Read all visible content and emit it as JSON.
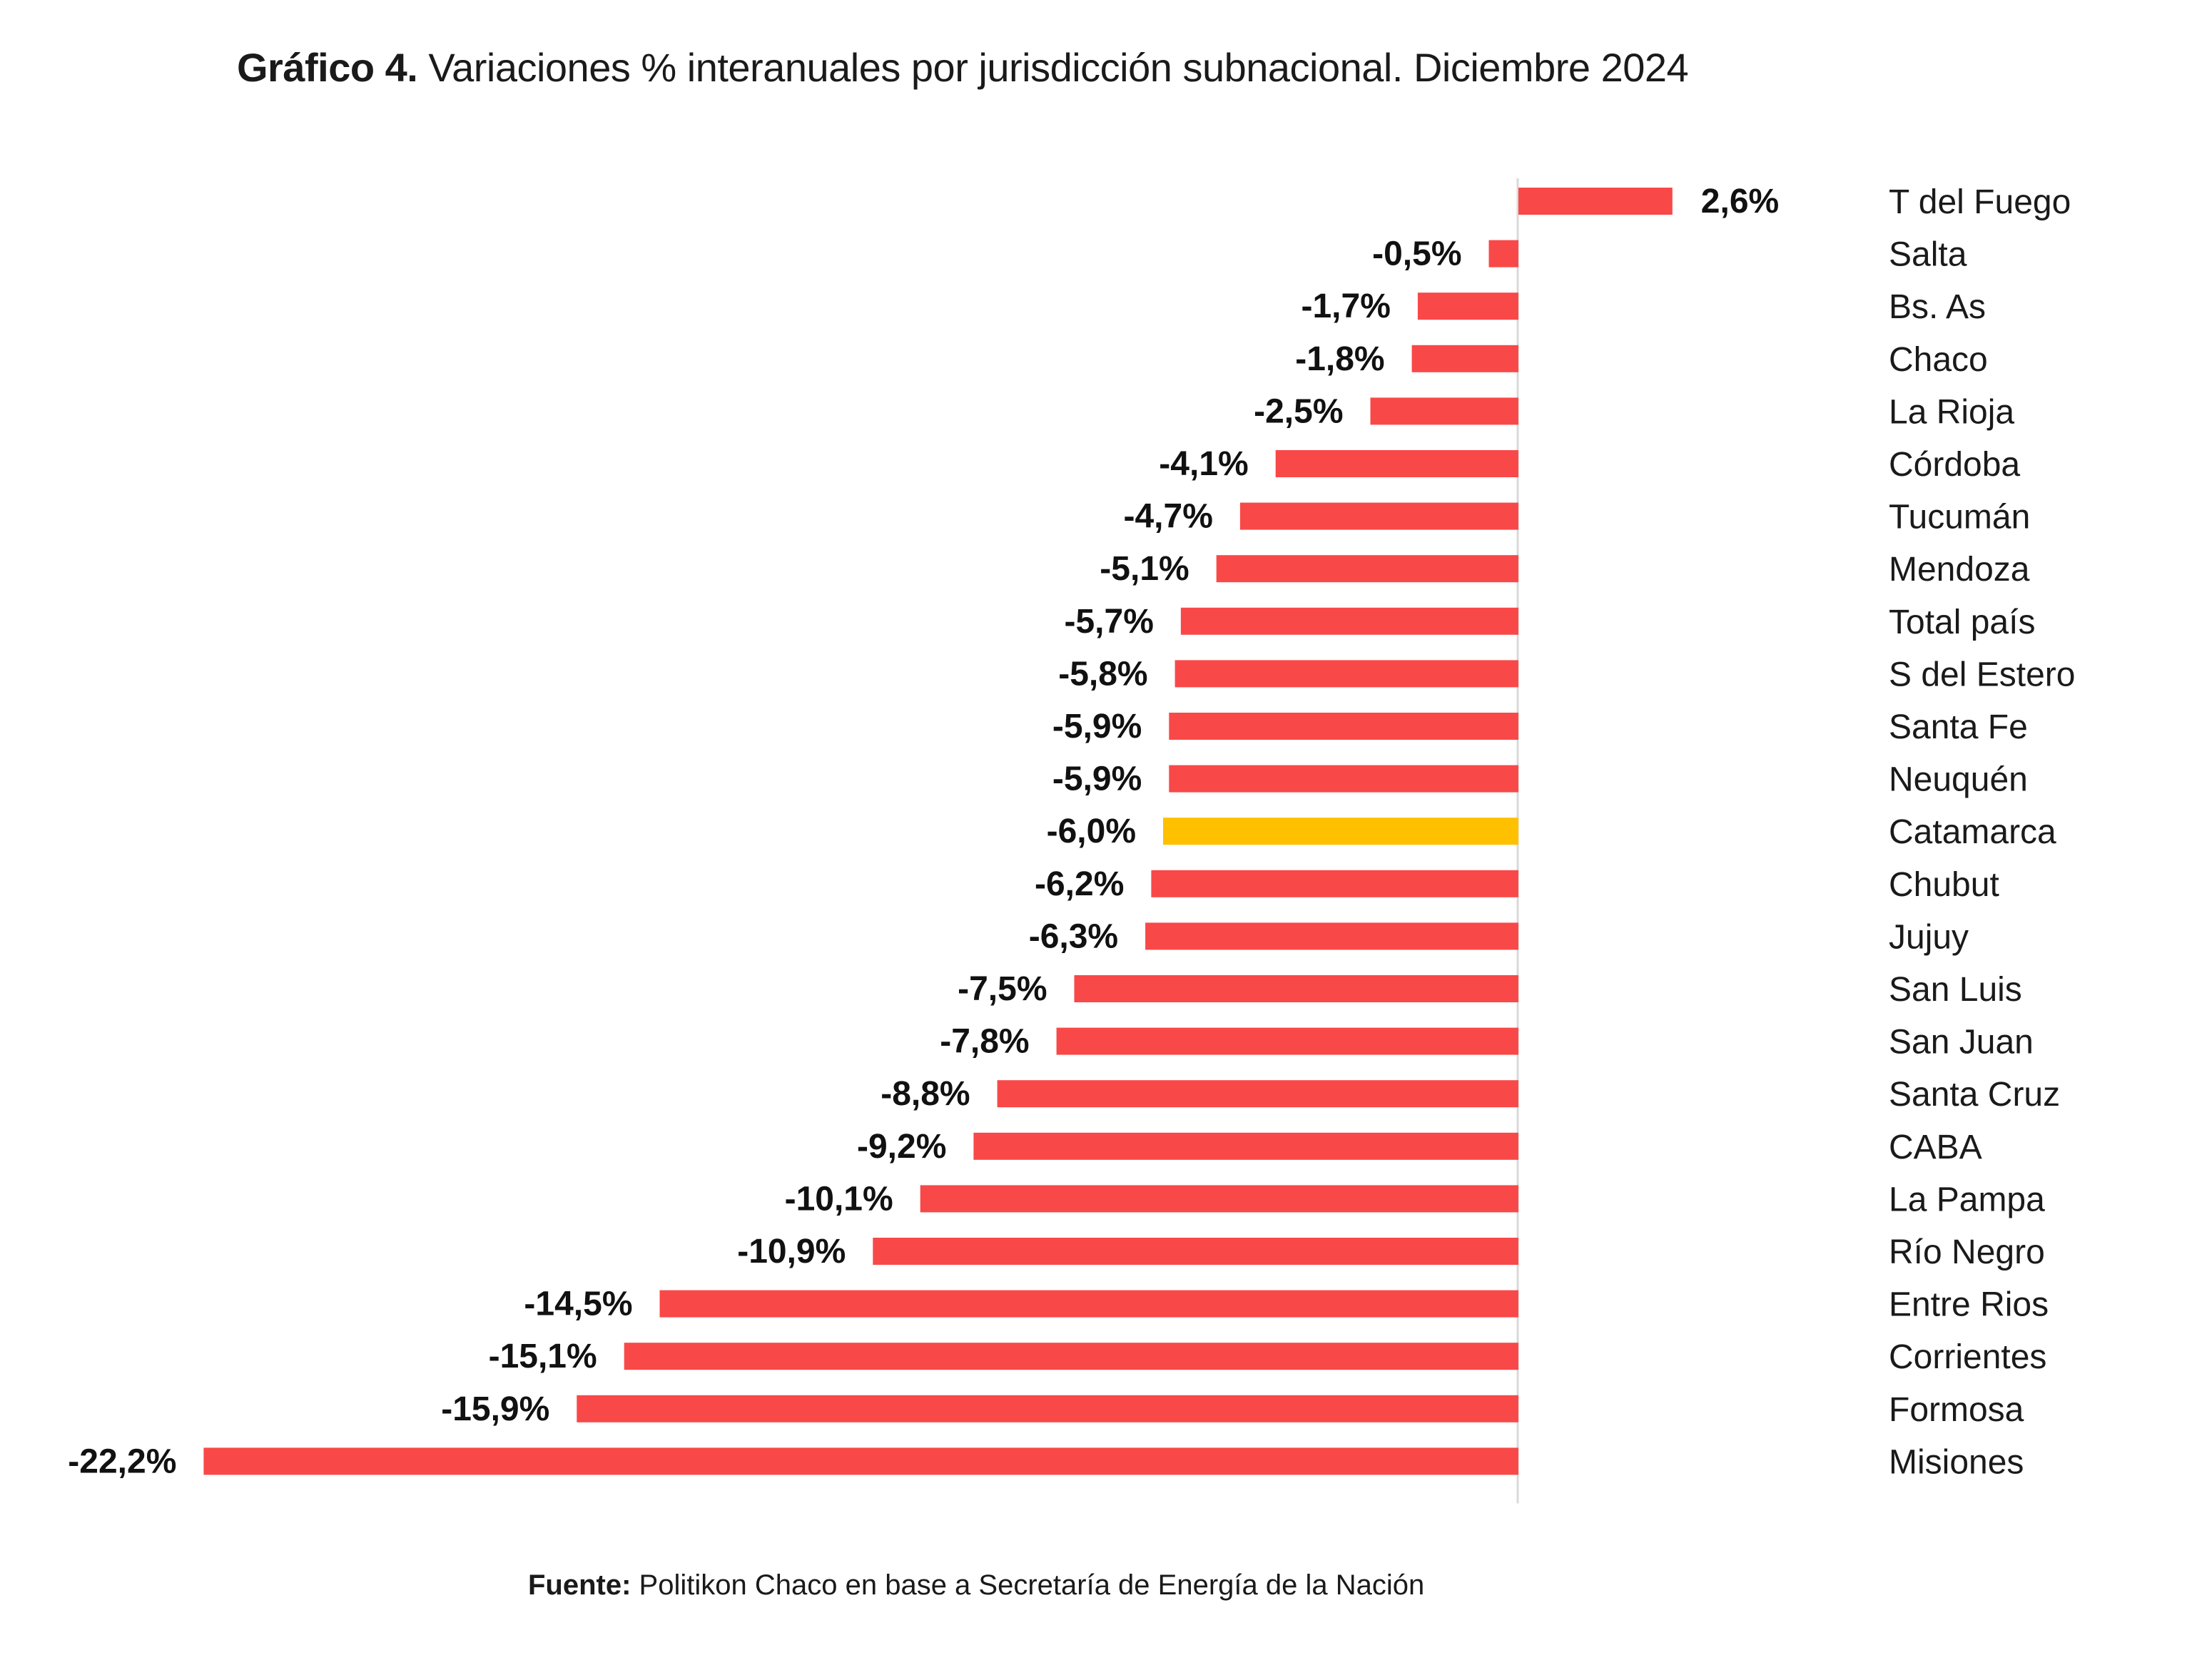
{
  "title": {
    "lead": "Gráfico 4.",
    "text": " Variaciones % interanuales por jurisdicción subnacional. Diciembre 2024"
  },
  "source": {
    "lead": "Fuente:",
    "text": " Politikon Chaco en base a Secretaría de Energía de la Nación"
  },
  "colors": {
    "bar": "#F94848",
    "highlight": "#FFC000",
    "axis": "#d9d9d9",
    "text": "#1a1a1a"
  },
  "chart_data": {
    "type": "bar",
    "orientation": "horizontal",
    "title": "Gráfico 4. Variaciones % interanuales por jurisdicción subnacional. Diciembre 2024",
    "xlabel": "",
    "ylabel": "",
    "unit": "%",
    "xlim": [
      -22.2,
      2.6
    ],
    "grid": false,
    "legend": "none",
    "highlight_category": "Catamarca",
    "categories": [
      "T del Fuego",
      "Salta",
      "Bs. As",
      "Chaco",
      "La Rioja",
      "Córdoba",
      "Tucumán",
      "Mendoza",
      "Total país",
      "S del Estero",
      "Santa Fe",
      "Neuquén",
      "Catamarca",
      "Chubut",
      "Jujuy",
      "San Luis",
      "San Juan",
      "Santa Cruz",
      "CABA",
      "La Pampa",
      "Río Negro",
      "Entre Rios",
      "Corrientes",
      "Formosa",
      "Misiones"
    ],
    "values": [
      2.6,
      -0.5,
      -1.7,
      -1.8,
      -2.5,
      -4.1,
      -4.7,
      -5.1,
      -5.7,
      -5.8,
      -5.9,
      -5.9,
      -6.0,
      -6.2,
      -6.3,
      -7.5,
      -7.8,
      -8.8,
      -9.2,
      -10.1,
      -10.9,
      -14.5,
      -15.1,
      -15.9,
      -22.2
    ],
    "labels": [
      "2,6%",
      "-0,5%",
      "-1,7%",
      "-1,8%",
      "-2,5%",
      "-4,1%",
      "-4,7%",
      "-5,1%",
      "-5,7%",
      "-5,8%",
      "-5,9%",
      "-5,9%",
      "-6,0%",
      "-6,2%",
      "-6,3%",
      "-7,5%",
      "-7,8%",
      "-8,8%",
      "-9,2%",
      "-10,1%",
      "-10,9%",
      "-14,5%",
      "-15,1%",
      "-15,9%",
      "-22,2%"
    ]
  }
}
